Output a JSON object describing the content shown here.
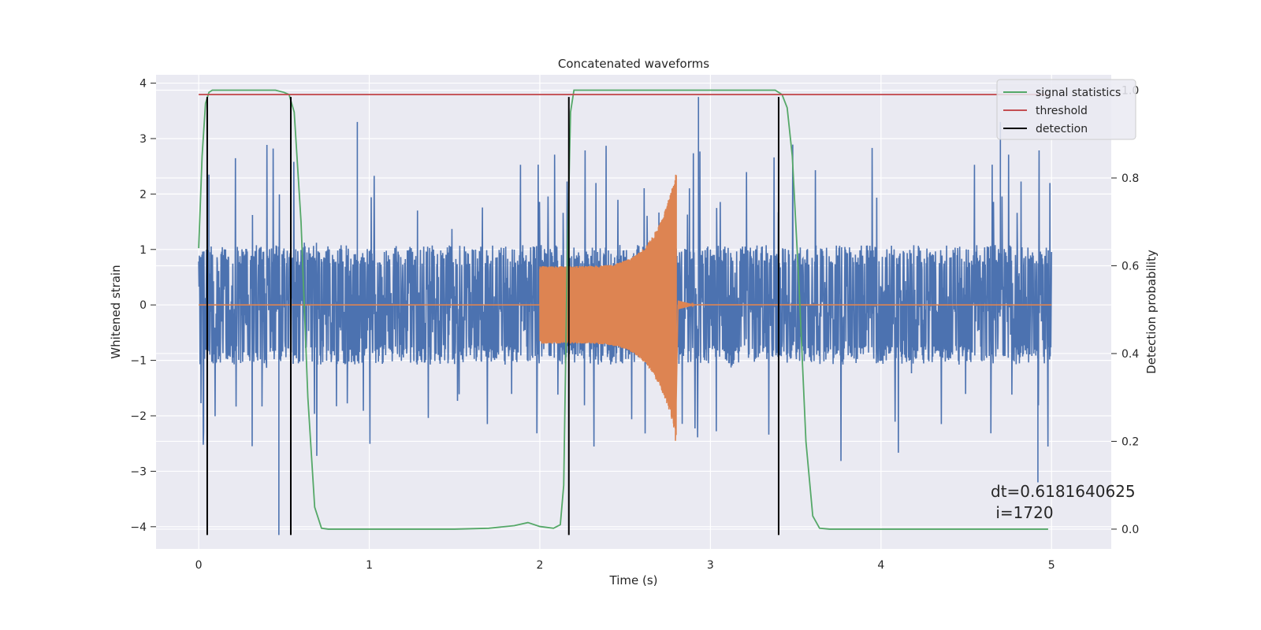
{
  "chart_data": {
    "type": "line",
    "title": "Concatenated waveforms",
    "xlabel": "Time (s)",
    "ylabel": "Whitened strain",
    "y2label": "Detection probability",
    "xlim": [
      -0.25,
      5.35
    ],
    "ylim": [
      -4.4,
      4.15
    ],
    "y2lim": [
      -0.045,
      1.035
    ],
    "xticks": [
      "0",
      "1",
      "2",
      "3",
      "4",
      "5"
    ],
    "yticks": [
      "−4",
      "−3",
      "−2",
      "−1",
      "0",
      "1",
      "2",
      "3",
      "4"
    ],
    "y2ticks": [
      "0.0",
      "0.2",
      "0.4",
      "0.6",
      "0.8",
      "1.0"
    ],
    "grid": true,
    "legend_position": "top-right",
    "legend": [
      {
        "label": "signal statistics",
        "color": "#55a868"
      },
      {
        "label": "threshold",
        "color": "#c44e52"
      },
      {
        "label": "detection",
        "color": "#000000"
      }
    ],
    "series": [
      {
        "name": "signal statistics",
        "axis": "right",
        "color": "#55a868",
        "x": [
          0,
          0.02,
          0.04,
          0.06,
          0.08,
          0.1,
          0.15,
          0.3,
          0.45,
          0.5,
          0.53,
          0.56,
          0.6,
          0.64,
          0.68,
          0.72,
          0.76,
          1.0,
          1.5,
          1.7,
          1.85,
          1.93,
          2.0,
          2.08,
          2.12,
          2.14,
          2.16,
          2.18,
          2.2,
          2.25,
          2.5,
          3.0,
          3.3,
          3.38,
          3.42,
          3.45,
          3.48,
          3.52,
          3.56,
          3.6,
          3.64,
          3.7,
          4.0,
          4.5,
          4.98
        ],
        "y": [
          0.64,
          0.85,
          0.97,
          0.995,
          1.0,
          1.0,
          1.0,
          1.0,
          1.0,
          0.995,
          0.99,
          0.95,
          0.7,
          0.3,
          0.05,
          0.002,
          0.0,
          0.0,
          0.0,
          0.002,
          0.008,
          0.015,
          0.006,
          0.002,
          0.01,
          0.1,
          0.6,
          0.95,
          1.0,
          1.0,
          1.0,
          1.0,
          1.0,
          1.0,
          0.99,
          0.96,
          0.85,
          0.55,
          0.2,
          0.03,
          0.002,
          0.0,
          0.0,
          0.0,
          0.0
        ]
      },
      {
        "name": "threshold",
        "axis": "right",
        "color": "#c44e52",
        "x": [
          0,
          4.98
        ],
        "y": [
          0.99,
          0.99
        ]
      },
      {
        "name": "detection",
        "axis": "left",
        "color": "#000000",
        "x": [
          0.05,
          0.54,
          2.17,
          3.4
        ],
        "y_range": [
          -4.15,
          3.75
        ]
      }
    ],
    "strain_noise": {
      "color": "#4c72b0",
      "x_range": [
        0,
        5.0
      ],
      "core_amplitude": 0.9,
      "peak_min": -4.15,
      "peak_max": 3.75
    },
    "injected_signal": {
      "color": "#dd8452",
      "x_range": [
        2.0,
        2.8
      ],
      "start_amplitude": 0.7,
      "peak_max": 2.4,
      "peak_min": -2.45
    },
    "annotation": {
      "line1": "dt=0.6181640625",
      "line2": " i=1720"
    }
  }
}
